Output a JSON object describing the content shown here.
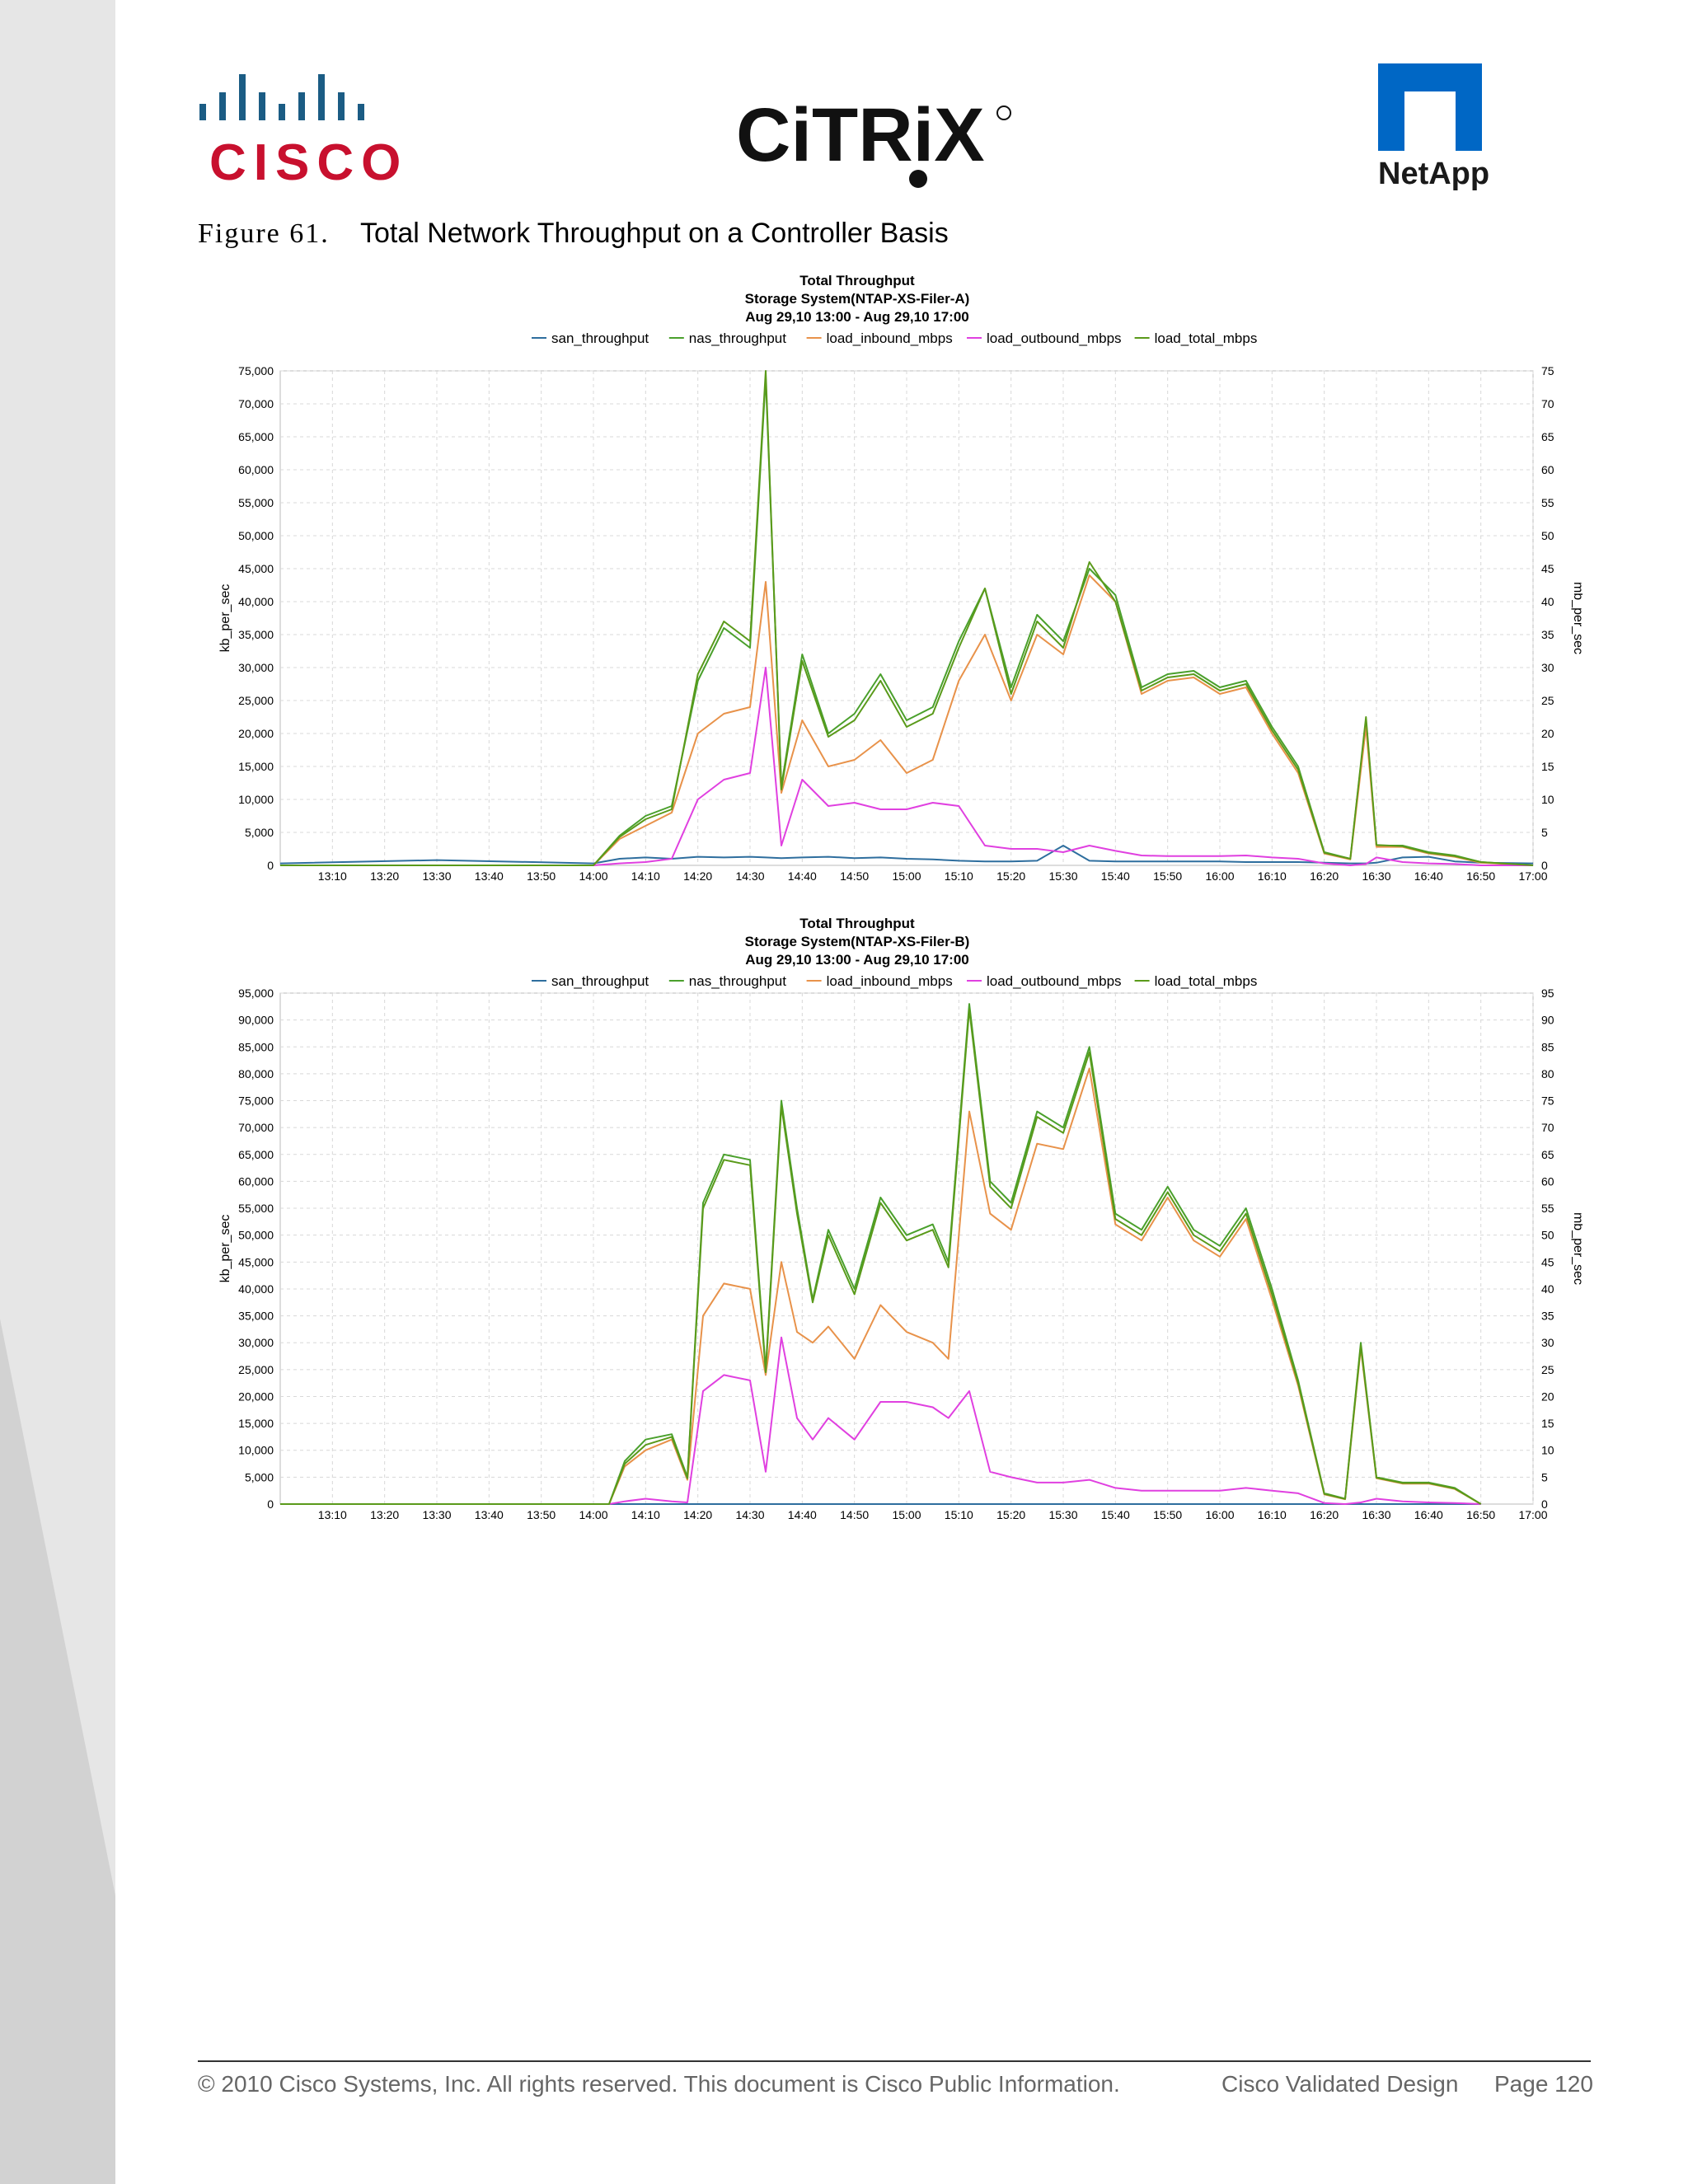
{
  "logos": {
    "cisco": "CISCO",
    "citrix": "CiTRiX",
    "netapp": "NetApp"
  },
  "figure": {
    "number": "Figure 61.",
    "title": "Total Network Throughput on a Controller Basis"
  },
  "legend_labels": [
    "san_throughput",
    "nas_throughput",
    "load_inbound_mbps",
    "load_outbound_mbps",
    "load_total_mbps"
  ],
  "colors": {
    "san": "#2e6e9e",
    "nas": "#4aa02c",
    "inbound": "#e8924a",
    "outbound": "#e040e0",
    "total": "#5a9a1a",
    "brand_cisco": "#c8102e",
    "brand_netapp": "#0067c5"
  },
  "chart_data": [
    {
      "type": "line",
      "title": "Total Throughput",
      "subtitle": "Storage System(NTAP-XS-Filer-A)",
      "date_range": "Aug 29,10 13:00 - Aug 29,10 17:00",
      "ylabel": "kb_per_sec",
      "y2label": "mb_per_sec",
      "ylim": [
        0,
        75000
      ],
      "y2lim": [
        0,
        75
      ],
      "yticks": [
        "0",
        "5,000",
        "10,000",
        "15,000",
        "20,000",
        "25,000",
        "30,000",
        "35,000",
        "40,000",
        "45,000",
        "50,000",
        "55,000",
        "60,000",
        "65,000",
        "70,000",
        "75,000"
      ],
      "y2ticks": [
        "0",
        "5",
        "10",
        "15",
        "20",
        "25",
        "30",
        "35",
        "40",
        "45",
        "50",
        "55",
        "60",
        "65",
        "70",
        "75"
      ],
      "xticks": [
        "13:10",
        "13:20",
        "13:30",
        "13:40",
        "13:50",
        "14:00",
        "14:10",
        "14:20",
        "14:30",
        "14:40",
        "14:50",
        "15:00",
        "15:10",
        "15:20",
        "15:30",
        "15:40",
        "15:50",
        "16:00",
        "16:10",
        "16:20",
        "16:30",
        "16:40",
        "16:50",
        "17:00"
      ],
      "x": [
        "13:00",
        "13:30",
        "14:00",
        "14:05",
        "14:10",
        "14:15",
        "14:20",
        "14:25",
        "14:30",
        "14:33",
        "14:36",
        "14:40",
        "14:45",
        "14:50",
        "14:55",
        "15:00",
        "15:05",
        "15:10",
        "15:15",
        "15:20",
        "15:25",
        "15:30",
        "15:35",
        "15:40",
        "15:45",
        "15:50",
        "15:55",
        "16:00",
        "16:05",
        "16:10",
        "16:15",
        "16:20",
        "16:25",
        "16:28",
        "16:30",
        "16:35",
        "16:40",
        "16:45",
        "16:50",
        "17:00"
      ],
      "series": [
        {
          "name": "san_throughput",
          "color": "#2e6e9e",
          "values": [
            300,
            800,
            300,
            1000,
            1200,
            1000,
            1300,
            1200,
            1300,
            1200,
            1100,
            1200,
            1300,
            1100,
            1200,
            1000,
            900,
            700,
            600,
            600,
            700,
            3000,
            700,
            600,
            600,
            600,
            600,
            600,
            500,
            500,
            500,
            400,
            300,
            300,
            400,
            1200,
            1300,
            600,
            400,
            300
          ]
        },
        {
          "name": "nas_throughput",
          "color": "#4aa02c",
          "values": [
            0,
            0,
            0,
            4500,
            7500,
            9000,
            28000,
            36000,
            33000,
            74000,
            12000,
            32000,
            20000,
            23000,
            29000,
            22000,
            24000,
            34000,
            42000,
            27000,
            38000,
            34000,
            45000,
            41000,
            27000,
            29000,
            29500,
            27000,
            28000,
            21000,
            15000,
            2000,
            1000,
            22000,
            3000,
            3000,
            2000,
            1500,
            500,
            0
          ]
        },
        {
          "name": "load_inbound_mbps",
          "color": "#e8924a",
          "values": [
            0,
            0,
            0,
            4000,
            6000,
            8000,
            20000,
            23000,
            24000,
            43000,
            11000,
            22000,
            15000,
            16000,
            19000,
            14000,
            16000,
            28000,
            35000,
            25000,
            35000,
            32000,
            44000,
            40000,
            26000,
            28000,
            28500,
            26000,
            27000,
            20000,
            14000,
            1800,
            900,
            21000,
            2800,
            2800,
            1800,
            1300,
            400,
            0
          ]
        },
        {
          "name": "load_outbound_mbps",
          "color": "#e040e0",
          "values": [
            0,
            0,
            0,
            300,
            500,
            1000,
            10000,
            13000,
            14000,
            30000,
            3000,
            13000,
            9000,
            9500,
            8500,
            8500,
            9500,
            9000,
            3000,
            2500,
            2500,
            2000,
            3000,
            2200,
            1500,
            1400,
            1400,
            1400,
            1500,
            1200,
            1000,
            300,
            0,
            200,
            1200,
            500,
            300,
            200,
            0,
            0
          ]
        },
        {
          "name": "load_total_mbps",
          "color": "#5a9a1a",
          "values": [
            0,
            0,
            0,
            4300,
            7000,
            8500,
            29000,
            37000,
            34000,
            75000,
            11500,
            31000,
            19500,
            22000,
            28000,
            21000,
            23000,
            33000,
            42000,
            26000,
            37000,
            33000,
            46000,
            40000,
            26500,
            28500,
            29000,
            26500,
            27500,
            20500,
            14500,
            1900,
            1000,
            22500,
            3100,
            2900,
            1900,
            1400,
            500,
            0
          ]
        }
      ]
    },
    {
      "type": "line",
      "title": "Total Throughput",
      "subtitle": "Storage System(NTAP-XS-Filer-B)",
      "date_range": "Aug 29,10 13:00 - Aug 29,10 17:00",
      "ylabel": "kb_per_sec",
      "y2label": "mb_per_sec",
      "ylim": [
        0,
        95000
      ],
      "y2lim": [
        0,
        95
      ],
      "yticks": [
        "0",
        "5,000",
        "10,000",
        "15,000",
        "20,000",
        "25,000",
        "30,000",
        "35,000",
        "40,000",
        "45,000",
        "50,000",
        "55,000",
        "60,000",
        "65,000",
        "70,000",
        "75,000",
        "80,000",
        "85,000",
        "90,000",
        "95,000"
      ],
      "y2ticks": [
        "0",
        "5",
        "10",
        "15",
        "20",
        "25",
        "30",
        "35",
        "40",
        "45",
        "50",
        "55",
        "60",
        "65",
        "70",
        "75",
        "80",
        "85",
        "90",
        "95"
      ],
      "xticks": [
        "13:10",
        "13:20",
        "13:30",
        "13:40",
        "13:50",
        "14:00",
        "14:10",
        "14:20",
        "14:30",
        "14:40",
        "14:50",
        "15:00",
        "15:10",
        "15:20",
        "15:30",
        "15:40",
        "15:50",
        "16:00",
        "16:10",
        "16:20",
        "16:30",
        "16:40",
        "16:50",
        "17:00"
      ],
      "x": [
        "13:00",
        "14:03",
        "14:06",
        "14:10",
        "14:15",
        "14:18",
        "14:21",
        "14:25",
        "14:30",
        "14:33",
        "14:36",
        "14:39",
        "14:42",
        "14:45",
        "14:50",
        "14:55",
        "15:00",
        "15:05",
        "15:08",
        "15:12",
        "15:16",
        "15:20",
        "15:25",
        "15:30",
        "15:35",
        "15:40",
        "15:45",
        "15:50",
        "15:55",
        "16:00",
        "16:05",
        "16:10",
        "16:15",
        "16:20",
        "16:24",
        "16:27",
        "16:30",
        "16:35",
        "16:40",
        "16:45",
        "16:50"
      ],
      "series": [
        {
          "name": "san_throughput",
          "color": "#2e6e9e",
          "values": [
            0,
            0,
            0,
            0,
            0,
            0,
            0,
            0,
            0,
            0,
            0,
            0,
            0,
            0,
            0,
            0,
            0,
            0,
            0,
            0,
            0,
            0,
            0,
            0,
            0,
            0,
            0,
            0,
            0,
            0,
            0,
            0,
            0,
            0,
            0,
            0,
            0,
            0,
            0,
            0,
            0
          ]
        },
        {
          "name": "nas_throughput",
          "color": "#4aa02c",
          "values": [
            0,
            0,
            8000,
            12000,
            13000,
            5000,
            56000,
            65000,
            64000,
            25000,
            75000,
            55000,
            38000,
            51000,
            40000,
            57000,
            50000,
            52000,
            45000,
            93000,
            60000,
            56000,
            73000,
            70000,
            85000,
            54000,
            51000,
            59000,
            51000,
            48000,
            55000,
            40000,
            23000,
            2000,
            1000,
            30000,
            5000,
            4000,
            4000,
            3000,
            0
          ]
        },
        {
          "name": "load_inbound_mbps",
          "color": "#e8924a",
          "values": [
            0,
            0,
            7000,
            10000,
            12000,
            4500,
            35000,
            41000,
            40000,
            24000,
            45000,
            32000,
            30000,
            33000,
            27000,
            37000,
            32000,
            30000,
            27000,
            73000,
            54000,
            51000,
            67000,
            66000,
            81000,
            52000,
            49000,
            57000,
            49000,
            46000,
            53000,
            38000,
            22000,
            1800,
            900,
            29000,
            4800,
            3800,
            3800,
            2800,
            0
          ]
        },
        {
          "name": "load_outbound_mbps",
          "color": "#e040e0",
          "values": [
            0,
            0,
            500,
            1000,
            500,
            300,
            21000,
            24000,
            23000,
            6000,
            31000,
            16000,
            12000,
            16000,
            12000,
            19000,
            19000,
            18000,
            16000,
            21000,
            6000,
            5000,
            4000,
            4000,
            4500,
            3000,
            2500,
            2500,
            2500,
            2500,
            3000,
            2500,
            2000,
            200,
            0,
            300,
            1000,
            500,
            300,
            200,
            0
          ]
        },
        {
          "name": "load_total_mbps",
          "color": "#5a9a1a",
          "values": [
            0,
            0,
            7500,
            11000,
            12500,
            4800,
            55000,
            64000,
            63000,
            24500,
            74000,
            54000,
            37500,
            50000,
            39000,
            56000,
            49000,
            51000,
            44000,
            92000,
            59000,
            55000,
            72000,
            69000,
            84000,
            53000,
            50000,
            58000,
            50000,
            47000,
            54000,
            39000,
            22500,
            1900,
            950,
            29500,
            4900,
            3900,
            3900,
            2900,
            0
          ]
        }
      ]
    }
  ],
  "footer": {
    "copyright": "© 2010 Cisco Systems, Inc. All rights reserved. This document is Cisco Public Information.",
    "cvd": "Cisco Validated Design",
    "page": "Page 120"
  }
}
